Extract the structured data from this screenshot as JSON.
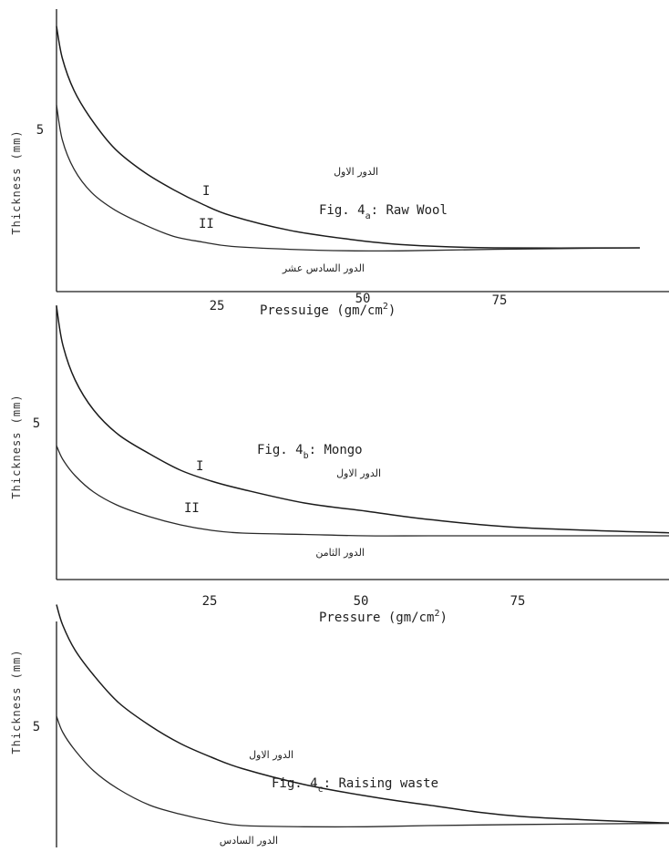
{
  "chart_data": [
    {
      "type": "line",
      "caption_prefix": "Fig. 4",
      "caption_sub": "a",
      "caption_suffix": ": Raw Wool",
      "ylabel": "Thickness (mm)",
      "xlabel_prefix": "Pressuige (gm/cm",
      "xlabel_sup": "2",
      "xlabel_suffix": ")",
      "x_ticks": [
        25,
        50,
        75
      ],
      "y_ticks": [
        5
      ],
      "xlim": [
        0,
        100
      ],
      "ylim": [
        0,
        10
      ],
      "grid": false,
      "legend": "none",
      "series": [
        {
          "name": "I",
          "arabic": "الدور الاول",
          "x": [
            0,
            1,
            3,
            6,
            10,
            15,
            20,
            25,
            30,
            40,
            50,
            60,
            75,
            100
          ],
          "y": [
            9.1,
            8.0,
            6.9,
            5.9,
            4.9,
            4.1,
            3.5,
            3.0,
            2.6,
            2.1,
            1.8,
            1.6,
            1.5,
            1.5
          ]
        },
        {
          "name": "II",
          "arabic": "الدور السادس عشر",
          "x": [
            0,
            1,
            3,
            6,
            10,
            15,
            20,
            25,
            30,
            40,
            50,
            60,
            75,
            100
          ],
          "y": [
            6.4,
            5.2,
            4.2,
            3.4,
            2.8,
            2.3,
            1.9,
            1.7,
            1.55,
            1.45,
            1.4,
            1.4,
            1.45,
            1.5
          ]
        }
      ]
    },
    {
      "type": "line",
      "caption_prefix": "Fig. 4",
      "caption_sub": "b",
      "caption_suffix": ": Mongo",
      "ylabel": "Thickness (mm)",
      "xlabel_prefix": "Pressure (gm/cm",
      "xlabel_sup": "2",
      "xlabel_suffix": ")",
      "x_ticks": [
        25,
        50,
        75
      ],
      "y_ticks": [
        5
      ],
      "xlim": [
        0,
        100
      ],
      "ylim": [
        0,
        10
      ],
      "grid": false,
      "legend": "none",
      "series": [
        {
          "name": "I",
          "arabic": "الدور الاول",
          "x": [
            0,
            1,
            3,
            6,
            10,
            15,
            20,
            25,
            30,
            40,
            50,
            60,
            75,
            100
          ],
          "y": [
            10.0,
            8.6,
            7.3,
            6.2,
            5.3,
            4.6,
            4.0,
            3.6,
            3.3,
            2.8,
            2.5,
            2.2,
            1.9,
            1.7
          ]
        },
        {
          "name": "II",
          "arabic": "الدور الثامن",
          "x": [
            0,
            1,
            3,
            6,
            10,
            15,
            20,
            25,
            30,
            40,
            50,
            60,
            75,
            100
          ],
          "y": [
            4.9,
            4.4,
            3.8,
            3.2,
            2.7,
            2.3,
            2.0,
            1.8,
            1.7,
            1.65,
            1.6,
            1.6,
            1.6,
            1.6
          ]
        }
      ]
    },
    {
      "type": "line",
      "caption_prefix": "Fig. 4",
      "caption_sub": "c",
      "caption_suffix": ": Raising waste",
      "ylabel": "Thickness (mm)",
      "x_ticks": [],
      "y_ticks": [
        5
      ],
      "xlim": [
        0,
        100
      ],
      "ylim": [
        0,
        10
      ],
      "grid": false,
      "legend": "none",
      "series": [
        {
          "name": "",
          "arabic": "الدور الاول",
          "x": [
            0,
            1,
            3,
            6,
            10,
            15,
            20,
            25,
            30,
            40,
            50,
            60,
            75,
            100
          ],
          "y": [
            10.5,
            9.6,
            8.5,
            7.4,
            6.2,
            5.2,
            4.4,
            3.8,
            3.3,
            2.6,
            2.1,
            1.7,
            1.2,
            0.9
          ]
        },
        {
          "name": "",
          "arabic": "الدور السادس",
          "x": [
            0,
            1,
            3,
            6,
            10,
            15,
            20,
            25,
            30,
            40,
            50,
            60,
            75,
            100
          ],
          "y": [
            5.6,
            4.9,
            4.1,
            3.2,
            2.4,
            1.7,
            1.3,
            1.0,
            0.8,
            0.75,
            0.75,
            0.8,
            0.85,
            0.9
          ]
        }
      ]
    }
  ]
}
